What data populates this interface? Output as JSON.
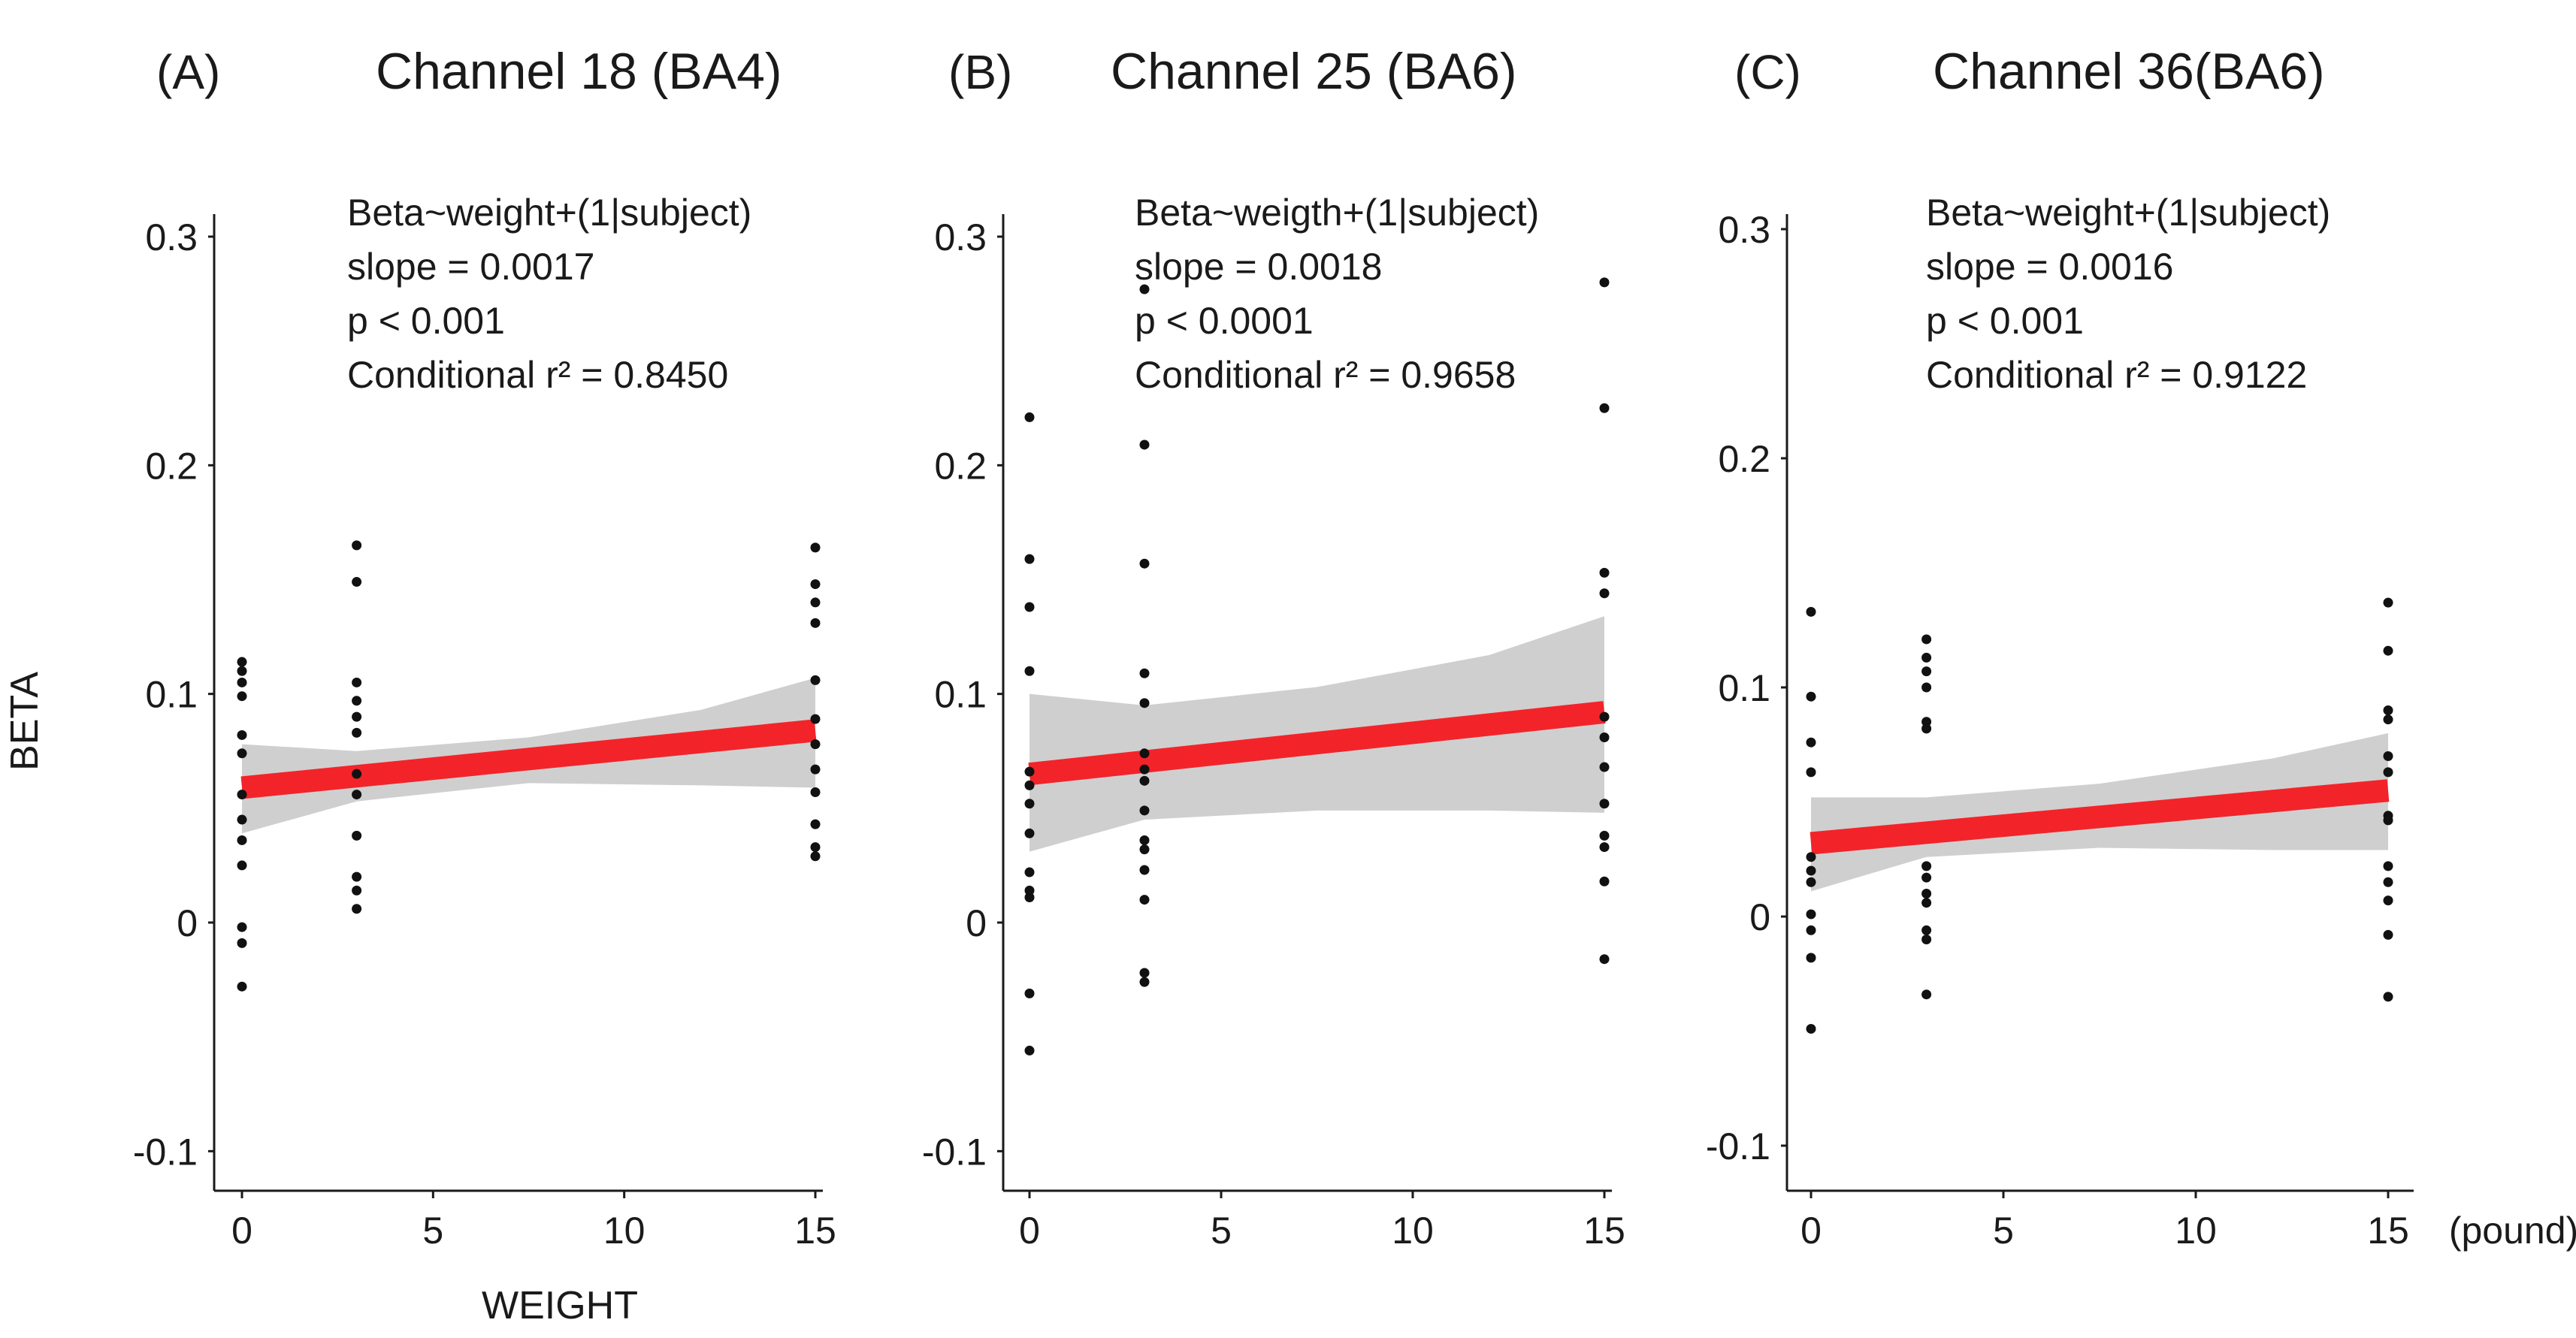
{
  "colors": {
    "fit_line": "#f2242a",
    "ci_band": "#cfcfcf",
    "points": "#111111",
    "axes": "#1a1a1a"
  },
  "figure": {
    "y_axis_title": "BETA",
    "x_axis_title": "WEIGHT",
    "x_unit": "(pound)"
  },
  "chart_data": [
    {
      "type": "scatter",
      "panel": "(A)",
      "title": "Channel 18 (BA4)",
      "xlabel": "WEIGHT",
      "ylabel": "BETA",
      "xlim": [
        -0.8,
        15.8
      ],
      "ylim": [
        -0.12,
        0.32
      ],
      "x_ticks": [
        0,
        5,
        10,
        15
      ],
      "x_tick_labels": [
        "0",
        "5",
        "10",
        "15"
      ],
      "y_ticks": [
        -0.1,
        0,
        0.1,
        0.2,
        0.3
      ],
      "y_tick_labels": [
        "-0.1",
        "0",
        "0.1",
        "0.2",
        "0.3"
      ],
      "annotation": [
        "Beta~weight+(1|subject)",
        "slope = 0.0017",
        "p < 0.001",
        "Conditional r² = 0.8450"
      ],
      "fit": {
        "x0": 0,
        "y0": 0.059,
        "x1": 15,
        "y1": 0.084
      },
      "ci_band": {
        "x": [
          0,
          3,
          7.5,
          12,
          15
        ],
        "lower": [
          0.039,
          0.053,
          0.061,
          0.06,
          0.059
        ],
        "upper": [
          0.078,
          0.075,
          0.081,
          0.093,
          0.107
        ]
      },
      "points": [
        {
          "x": 0,
          "y": 0.114
        },
        {
          "x": 0,
          "y": 0.11
        },
        {
          "x": 0,
          "y": 0.105
        },
        {
          "x": 0,
          "y": 0.099
        },
        {
          "x": 0,
          "y": 0.082
        },
        {
          "x": 0,
          "y": 0.074
        },
        {
          "x": 0,
          "y": 0.056
        },
        {
          "x": 0,
          "y": 0.045
        },
        {
          "x": 0,
          "y": 0.036
        },
        {
          "x": 0,
          "y": 0.025
        },
        {
          "x": 0,
          "y": -0.002
        },
        {
          "x": 0,
          "y": -0.009
        },
        {
          "x": 0,
          "y": -0.028
        },
        {
          "x": 3,
          "y": 0.165
        },
        {
          "x": 3,
          "y": 0.149
        },
        {
          "x": 3,
          "y": 0.105
        },
        {
          "x": 3,
          "y": 0.097
        },
        {
          "x": 3,
          "y": 0.09
        },
        {
          "x": 3,
          "y": 0.083
        },
        {
          "x": 3,
          "y": 0.065
        },
        {
          "x": 3,
          "y": 0.056
        },
        {
          "x": 3,
          "y": 0.038
        },
        {
          "x": 3,
          "y": 0.02
        },
        {
          "x": 3,
          "y": 0.014
        },
        {
          "x": 3,
          "y": 0.006
        },
        {
          "x": 15,
          "y": 0.164
        },
        {
          "x": 15,
          "y": 0.148
        },
        {
          "x": 15,
          "y": 0.14
        },
        {
          "x": 15,
          "y": 0.131
        },
        {
          "x": 15,
          "y": 0.106
        },
        {
          "x": 15,
          "y": 0.089
        },
        {
          "x": 15,
          "y": 0.078
        },
        {
          "x": 15,
          "y": 0.067
        },
        {
          "x": 15,
          "y": 0.057
        },
        {
          "x": 15,
          "y": 0.043
        },
        {
          "x": 15,
          "y": 0.033
        },
        {
          "x": 15,
          "y": 0.029
        }
      ]
    },
    {
      "type": "scatter",
      "panel": "(B)",
      "title": "Channel 25 (BA6)",
      "xlabel": "",
      "ylabel": "",
      "xlim": [
        -0.8,
        15.8
      ],
      "ylim": [
        -0.12,
        0.32
      ],
      "x_ticks": [
        0,
        5,
        10,
        15
      ],
      "x_tick_labels": [
        "0",
        "5",
        "10",
        "15"
      ],
      "y_ticks": [
        -0.1,
        0,
        0.1,
        0.2,
        0.3
      ],
      "y_tick_labels": [
        "-0.1",
        "0",
        "0.1",
        "0.2",
        "0.3"
      ],
      "annotation": [
        "Beta~weigth+(1|subject)",
        "slope = 0.0018",
        "p < 0.0001",
        "Conditional r² = 0.9658"
      ],
      "fit": {
        "x0": 0,
        "y0": 0.065,
        "x1": 15,
        "y1": 0.092
      },
      "ci_band": {
        "x": [
          0,
          3,
          7.5,
          12,
          15
        ],
        "lower": [
          0.031,
          0.045,
          0.049,
          0.049,
          0.048
        ],
        "upper": [
          0.1,
          0.095,
          0.103,
          0.117,
          0.134
        ]
      },
      "points": [
        {
          "x": 0,
          "y": 0.221
        },
        {
          "x": 0,
          "y": 0.159
        },
        {
          "x": 0,
          "y": 0.138
        },
        {
          "x": 0,
          "y": 0.11
        },
        {
          "x": 0,
          "y": 0.066
        },
        {
          "x": 0,
          "y": 0.06
        },
        {
          "x": 0,
          "y": 0.052
        },
        {
          "x": 0,
          "y": 0.039
        },
        {
          "x": 0,
          "y": 0.022
        },
        {
          "x": 0,
          "y": 0.014
        },
        {
          "x": 0,
          "y": 0.011
        },
        {
          "x": 0,
          "y": -0.031
        },
        {
          "x": 0,
          "y": -0.056
        },
        {
          "x": 3,
          "y": 0.277
        },
        {
          "x": 3,
          "y": 0.209
        },
        {
          "x": 3,
          "y": 0.157
        },
        {
          "x": 3,
          "y": 0.109
        },
        {
          "x": 3,
          "y": 0.096
        },
        {
          "x": 3,
          "y": 0.074
        },
        {
          "x": 3,
          "y": 0.067
        },
        {
          "x": 3,
          "y": 0.062
        },
        {
          "x": 3,
          "y": 0.049
        },
        {
          "x": 3,
          "y": 0.036
        },
        {
          "x": 3,
          "y": 0.032
        },
        {
          "x": 3,
          "y": 0.023
        },
        {
          "x": 3,
          "y": 0.01
        },
        {
          "x": 3,
          "y": -0.022
        },
        {
          "x": 3,
          "y": -0.026
        },
        {
          "x": 15,
          "y": 0.28
        },
        {
          "x": 15,
          "y": 0.225
        },
        {
          "x": 15,
          "y": 0.153
        },
        {
          "x": 15,
          "y": 0.144
        },
        {
          "x": 15,
          "y": 0.09
        },
        {
          "x": 15,
          "y": 0.081
        },
        {
          "x": 15,
          "y": 0.068
        },
        {
          "x": 15,
          "y": 0.052
        },
        {
          "x": 15,
          "y": 0.038
        },
        {
          "x": 15,
          "y": 0.033
        },
        {
          "x": 15,
          "y": 0.018
        },
        {
          "x": 15,
          "y": -0.016
        }
      ]
    },
    {
      "type": "scatter",
      "panel": "(C)",
      "title": "Channel 36(BA6)",
      "xlabel": "(pound)",
      "ylabel": "",
      "xlim": [
        -0.8,
        15.8
      ],
      "ylim": [
        -0.12,
        0.32
      ],
      "x_ticks": [
        0,
        5,
        10,
        15
      ],
      "x_tick_labels": [
        "0",
        "5",
        "10",
        "15"
      ],
      "y_ticks": [
        -0.1,
        0,
        0.1,
        0.2,
        0.3
      ],
      "y_tick_labels": [
        "-0.1",
        "0",
        "0.1",
        "0.2",
        "0.3"
      ],
      "annotation": [
        "Beta~weight+(1|subject)",
        "slope = 0.0016",
        "p < 0.001",
        "Conditional r² = 0.9122"
      ],
      "fit": {
        "x0": 0,
        "y0": 0.032,
        "x1": 15,
        "y1": 0.055
      },
      "ci_band": {
        "x": [
          0,
          3,
          7.5,
          12,
          15
        ],
        "lower": [
          0.011,
          0.026,
          0.03,
          0.029,
          0.029
        ],
        "upper": [
          0.052,
          0.052,
          0.058,
          0.069,
          0.08
        ]
      },
      "points": [
        {
          "x": 0,
          "y": 0.133
        },
        {
          "x": 0,
          "y": 0.096
        },
        {
          "x": 0,
          "y": 0.076
        },
        {
          "x": 0,
          "y": 0.063
        },
        {
          "x": 0,
          "y": 0.026
        },
        {
          "x": 0,
          "y": 0.02
        },
        {
          "x": 0,
          "y": 0.015
        },
        {
          "x": 0,
          "y": 0.001
        },
        {
          "x": 0,
          "y": -0.006
        },
        {
          "x": 0,
          "y": -0.018
        },
        {
          "x": 0,
          "y": -0.049
        },
        {
          "x": 3,
          "y": 0.121
        },
        {
          "x": 3,
          "y": 0.113
        },
        {
          "x": 3,
          "y": 0.107
        },
        {
          "x": 3,
          "y": 0.1
        },
        {
          "x": 3,
          "y": 0.085
        },
        {
          "x": 3,
          "y": 0.082
        },
        {
          "x": 3,
          "y": 0.022
        },
        {
          "x": 3,
          "y": 0.017
        },
        {
          "x": 3,
          "y": 0.01
        },
        {
          "x": 3,
          "y": 0.006
        },
        {
          "x": 3,
          "y": -0.006
        },
        {
          "x": 3,
          "y": -0.01
        },
        {
          "x": 3,
          "y": -0.034
        },
        {
          "x": 15,
          "y": 0.137
        },
        {
          "x": 15,
          "y": 0.116
        },
        {
          "x": 15,
          "y": 0.09
        },
        {
          "x": 15,
          "y": 0.086
        },
        {
          "x": 15,
          "y": 0.07
        },
        {
          "x": 15,
          "y": 0.063
        },
        {
          "x": 15,
          "y": 0.044
        },
        {
          "x": 15,
          "y": 0.042
        },
        {
          "x": 15,
          "y": 0.022
        },
        {
          "x": 15,
          "y": 0.015
        },
        {
          "x": 15,
          "y": 0.007
        },
        {
          "x": 15,
          "y": -0.008
        },
        {
          "x": 15,
          "y": -0.035
        }
      ]
    }
  ]
}
